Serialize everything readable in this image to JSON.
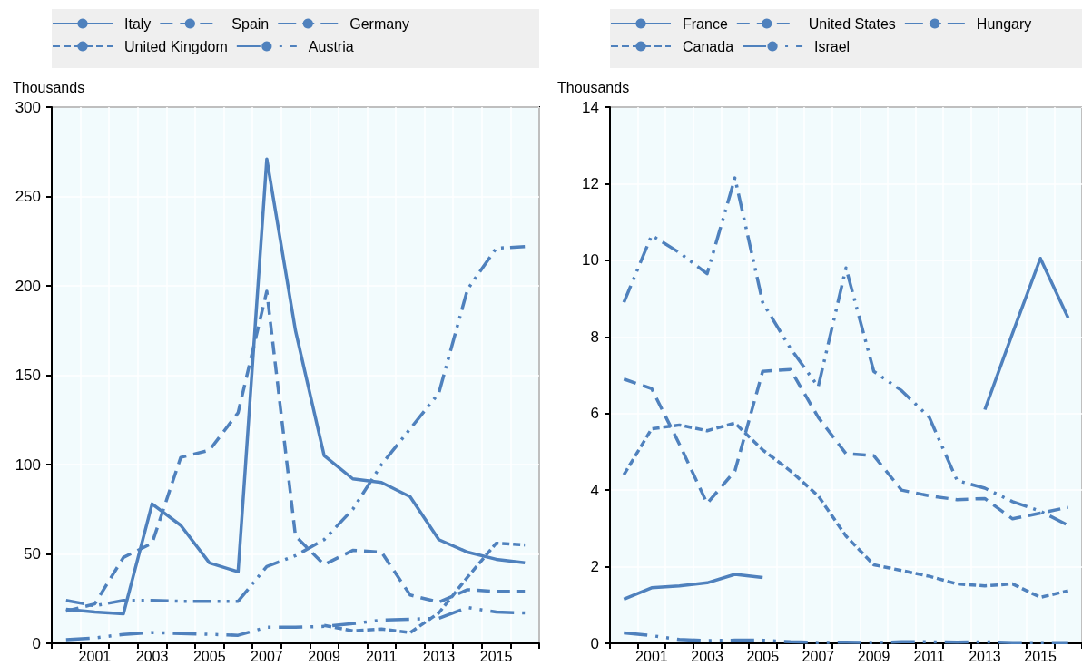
{
  "chart_data": [
    {
      "type": "line",
      "ylabel": "Thousands",
      "categories": [
        null,
        "2001",
        null,
        "2003",
        null,
        "2005",
        null,
        "2007",
        null,
        "2009",
        null,
        "2011",
        null,
        "2013",
        null,
        "2015",
        null
      ],
      "ylim": [
        0,
        300
      ],
      "yticks": [
        0,
        50,
        100,
        150,
        200,
        250,
        300
      ],
      "grid": true,
      "legend": "top",
      "marker": "none",
      "series": [
        {
          "name": "Italy",
          "color": "#4f81bd",
          "line_style": "solid",
          "values": [
            19,
            17.5,
            16.5,
            78,
            66,
            45,
            40,
            271,
            175,
            105,
            92,
            90,
            82,
            58,
            51,
            47,
            45
          ]
        },
        {
          "name": "Spain",
          "color": "#4f81bd",
          "line_style": "dashed",
          "values": [
            18,
            22,
            48,
            56,
            104,
            108,
            129,
            197,
            60,
            44,
            52,
            51,
            27,
            23,
            30,
            29,
            29
          ]
        },
        {
          "name": "Germany",
          "color": "#4f81bd",
          "line_style": "dashdotdot",
          "values": [
            24,
            21,
            24,
            24,
            23.5,
            23.5,
            23.5,
            43,
            49,
            58,
            75,
            100,
            120,
            140,
            198,
            221,
            222
          ]
        },
        {
          "name": "United Kingdom",
          "color": "#4f81bd",
          "line_style": "shortdash",
          "values": [
            null,
            null,
            null,
            null,
            null,
            null,
            null,
            null,
            null,
            10,
            7,
            8,
            6,
            17,
            37,
            56,
            55
          ]
        },
        {
          "name": "Austria",
          "color": "#4f81bd",
          "line_style": "longdashdotdot",
          "values": [
            2,
            3,
            5,
            6,
            5.5,
            5,
            4.5,
            9,
            9,
            9.5,
            11,
            13,
            13.5,
            14,
            20,
            17.5,
            17
          ]
        }
      ]
    },
    {
      "type": "line",
      "ylabel": "Thousands",
      "categories": [
        null,
        "2001",
        null,
        "2003",
        null,
        "2005",
        null,
        "2007",
        null,
        "2009",
        null,
        "2011",
        null,
        "2013",
        null,
        "2015",
        null
      ],
      "ylim": [
        0,
        14
      ],
      "yticks": [
        0,
        2,
        4,
        6,
        8,
        10,
        12,
        14
      ],
      "grid": true,
      "legend": "top",
      "marker": "none",
      "series": [
        {
          "name": "France",
          "color": "#4f81bd",
          "line_style": "solid",
          "values": [
            1.15,
            1.45,
            1.5,
            1.58,
            1.8,
            1.72,
            null,
            null,
            null,
            null,
            null,
            null,
            null,
            6.1,
            8.1,
            10.05,
            8.5
          ]
        },
        {
          "name": "United States",
          "color": "#4f81bd",
          "line_style": "dashed",
          "values": [
            6.9,
            6.65,
            5.2,
            3.65,
            4.5,
            7.1,
            7.15,
            5.9,
            4.95,
            4.9,
            4.0,
            3.85,
            3.75,
            3.78,
            3.25,
            3.4,
            3.55
          ]
        },
        {
          "name": "Hungary",
          "color": "#4f81bd",
          "line_style": "dashdotdot",
          "values": [
            8.9,
            10.65,
            10.2,
            9.65,
            12.15,
            8.9,
            7.7,
            6.7,
            9.8,
            7.1,
            6.6,
            5.9,
            4.25,
            4.05,
            3.7,
            3.45,
            3.08
          ]
        },
        {
          "name": "Canada",
          "color": "#4f81bd",
          "line_style": "shortdash",
          "values": [
            4.4,
            5.6,
            5.7,
            5.55,
            5.75,
            5.05,
            4.5,
            3.85,
            2.8,
            2.05,
            1.9,
            1.75,
            1.55,
            1.5,
            1.55,
            1.2,
            1.37
          ]
        },
        {
          "name": "Israel",
          "color": "#4f81bd",
          "line_style": "longdashdotdot",
          "values": [
            0.27,
            0.2,
            0.1,
            0.07,
            0.08,
            0.08,
            0.04,
            0.02,
            0.03,
            0.02,
            0.04,
            0.04,
            0.03,
            0.04,
            0.02,
            0.02,
            0.02
          ]
        }
      ]
    }
  ]
}
